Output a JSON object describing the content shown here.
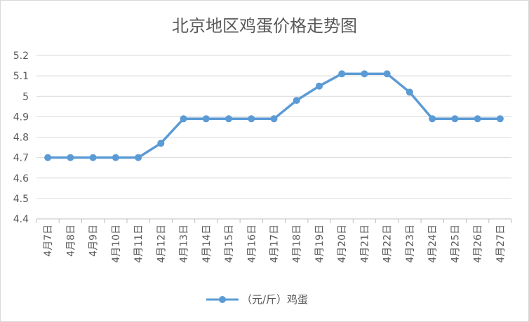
{
  "chart_data": {
    "type": "line",
    "title": "北京地区鸡蛋价格走势图",
    "xlabel": "",
    "ylabel": "",
    "categories": [
      "4月7日",
      "4月8日",
      "4月9日",
      "4月10日",
      "4月11日",
      "4月12日",
      "4月13日",
      "4月14日",
      "4月15日",
      "4月16日",
      "4月17日",
      "4月18日",
      "4月19日",
      "4月20日",
      "4月21日",
      "4月22日",
      "4月23日",
      "4月24日",
      "4月25日",
      "4月26日",
      "4月27日"
    ],
    "series": [
      {
        "name": "（元/斤）鸡蛋",
        "values": [
          4.7,
          4.7,
          4.7,
          4.7,
          4.7,
          4.77,
          4.89,
          4.89,
          4.89,
          4.89,
          4.89,
          4.98,
          5.05,
          5.11,
          5.11,
          5.11,
          5.02,
          4.89,
          4.89,
          4.89,
          4.89
        ]
      }
    ],
    "yticks": [
      "4.4",
      "4.5",
      "4.6",
      "4.7",
      "4.8",
      "4.9",
      "5",
      "5.1",
      "5.2"
    ],
    "ylim": [
      4.4,
      5.2
    ],
    "grid": true,
    "legend_position": "bottom",
    "series_color": "#5b9bd5"
  }
}
